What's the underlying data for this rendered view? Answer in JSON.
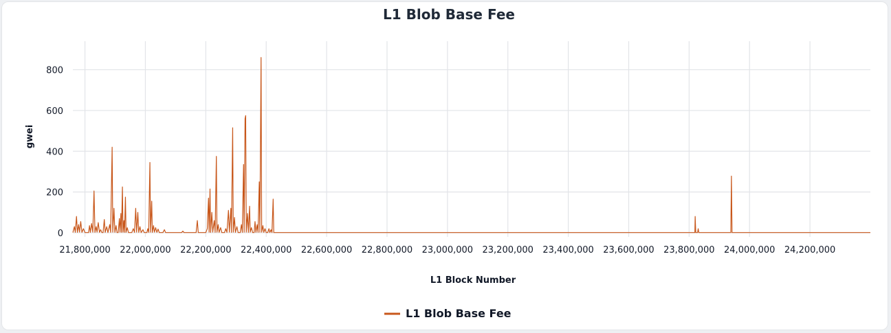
{
  "chart_data": {
    "type": "line",
    "title": "L1 Blob Base Fee",
    "xlabel": "L1 Block Number",
    "ylabel": "gwei",
    "xlim": [
      21760000,
      24400000
    ],
    "ylim": [
      0,
      940
    ],
    "x_ticks": [
      21800000,
      22000000,
      22200000,
      22400000,
      22600000,
      22800000,
      23000000,
      23200000,
      23400000,
      23600000,
      23800000,
      24000000,
      24200000
    ],
    "x_tick_labels": [
      "21,800,000",
      "22,000,000",
      "22,200,000",
      "22,400,000",
      "22,600,000",
      "22,800,000",
      "23,000,000",
      "23,200,000",
      "23,400,000",
      "23,600,000",
      "23,800,000",
      "24,000,000",
      "24,200,000"
    ],
    "y_ticks": [
      0,
      200,
      400,
      600,
      800
    ],
    "y_tick_labels": [
      "0",
      "200",
      "400",
      "600",
      "800"
    ],
    "grid": true,
    "legend_position": "bottom-center",
    "series": [
      {
        "name": "L1 Blob Base Fee",
        "color": "#c8571b",
        "points": [
          [
            21760000,
            1
          ],
          [
            21765000,
            30
          ],
          [
            21768000,
            2
          ],
          [
            21772000,
            80
          ],
          [
            21775000,
            2
          ],
          [
            21779000,
            40
          ],
          [
            21782000,
            3
          ],
          [
            21786000,
            55
          ],
          [
            21790000,
            2
          ],
          [
            21795000,
            20
          ],
          [
            21800000,
            1
          ],
          [
            21812000,
            1
          ],
          [
            21815000,
            35
          ],
          [
            21818000,
            2
          ],
          [
            21822000,
            45
          ],
          [
            21826000,
            3
          ],
          [
            21830000,
            205
          ],
          [
            21833000,
            2
          ],
          [
            21837000,
            30
          ],
          [
            21840000,
            3
          ],
          [
            21844000,
            50
          ],
          [
            21848000,
            2
          ],
          [
            21852000,
            15
          ],
          [
            21856000,
            1
          ],
          [
            21860000,
            1
          ],
          [
            21864000,
            65
          ],
          [
            21867000,
            2
          ],
          [
            21872000,
            30
          ],
          [
            21876000,
            1
          ],
          [
            21882000,
            40
          ],
          [
            21885000,
            2
          ],
          [
            21890000,
            420
          ],
          [
            21892000,
            3
          ],
          [
            21896000,
            120
          ],
          [
            21899000,
            2
          ],
          [
            21903000,
            35
          ],
          [
            21906000,
            1
          ],
          [
            21910000,
            1
          ],
          [
            21914000,
            70
          ],
          [
            21916000,
            3
          ],
          [
            21919000,
            95
          ],
          [
            21921000,
            2
          ],
          [
            21924000,
            225
          ],
          [
            21926000,
            3
          ],
          [
            21929000,
            60
          ],
          [
            21931000,
            2
          ],
          [
            21934000,
            175
          ],
          [
            21936000,
            2
          ],
          [
            21940000,
            25
          ],
          [
            21944000,
            1
          ],
          [
            21955000,
            1
          ],
          [
            21960000,
            20
          ],
          [
            21964000,
            2
          ],
          [
            21968000,
            120
          ],
          [
            21971000,
            3
          ],
          [
            21975000,
            100
          ],
          [
            21978000,
            2
          ],
          [
            21982000,
            30
          ],
          [
            21986000,
            1
          ],
          [
            21992000,
            15
          ],
          [
            21996000,
            1
          ],
          [
            22005000,
            1
          ],
          [
            22008000,
            20
          ],
          [
            22011000,
            2
          ],
          [
            22015000,
            345
          ],
          [
            22017000,
            3
          ],
          [
            22021000,
            155
          ],
          [
            22023000,
            2
          ],
          [
            22027000,
            35
          ],
          [
            22030000,
            3
          ],
          [
            22034000,
            25
          ],
          [
            22038000,
            2
          ],
          [
            22042000,
            18
          ],
          [
            22046000,
            1
          ],
          [
            22058000,
            1
          ],
          [
            22063000,
            15
          ],
          [
            22067000,
            1
          ],
          [
            22120000,
            1
          ],
          [
            22124000,
            8
          ],
          [
            22128000,
            1
          ],
          [
            22168000,
            1
          ],
          [
            22172000,
            60
          ],
          [
            22175000,
            1
          ],
          [
            22200000,
            1
          ],
          [
            22205000,
            20
          ],
          [
            22209000,
            170
          ],
          [
            22211000,
            3
          ],
          [
            22214000,
            215
          ],
          [
            22216000,
            2
          ],
          [
            22220000,
            100
          ],
          [
            22223000,
            3
          ],
          [
            22228000,
            60
          ],
          [
            22231000,
            2
          ],
          [
            22235000,
            375
          ],
          [
            22237000,
            3
          ],
          [
            22241000,
            40
          ],
          [
            22244000,
            2
          ],
          [
            22249000,
            25
          ],
          [
            22253000,
            1
          ],
          [
            22262000,
            1
          ],
          [
            22266000,
            20
          ],
          [
            22270000,
            2
          ],
          [
            22275000,
            110
          ],
          [
            22278000,
            3
          ],
          [
            22283000,
            120
          ],
          [
            22285000,
            2
          ],
          [
            22289000,
            515
          ],
          [
            22291000,
            3
          ],
          [
            22295000,
            75
          ],
          [
            22298000,
            2
          ],
          [
            22303000,
            30
          ],
          [
            22307000,
            1
          ],
          [
            22314000,
            1
          ],
          [
            22318000,
            40
          ],
          [
            22321000,
            2
          ],
          [
            22325000,
            335
          ],
          [
            22327000,
            3
          ],
          [
            22330000,
            560
          ],
          [
            22332000,
            575
          ],
          [
            22334000,
            3
          ],
          [
            22338000,
            95
          ],
          [
            22341000,
            2
          ],
          [
            22345000,
            130
          ],
          [
            22347000,
            3
          ],
          [
            22351000,
            25
          ],
          [
            22355000,
            1
          ],
          [
            22360000,
            1
          ],
          [
            22363000,
            55
          ],
          [
            22366000,
            2
          ],
          [
            22370000,
            40
          ],
          [
            22373000,
            2
          ],
          [
            22377000,
            250
          ],
          [
            22379000,
            3
          ],
          [
            22383000,
            860
          ],
          [
            22385000,
            3
          ],
          [
            22389000,
            35
          ],
          [
            22392000,
            2
          ],
          [
            22396000,
            20
          ],
          [
            22400000,
            1
          ],
          [
            22405000,
            1
          ],
          [
            22409000,
            20
          ],
          [
            22412000,
            1
          ],
          [
            22416000,
            15
          ],
          [
            22419000,
            1
          ],
          [
            22423000,
            165
          ],
          [
            22425000,
            1
          ],
          [
            23800000,
            1
          ],
          [
            23819000,
            1
          ],
          [
            23820000,
            80
          ],
          [
            23822000,
            1
          ],
          [
            23828000,
            1
          ],
          [
            23830000,
            20
          ],
          [
            23832000,
            1
          ],
          [
            23930000,
            1
          ],
          [
            23938000,
            1
          ],
          [
            23940000,
            278
          ],
          [
            23942000,
            1
          ],
          [
            24400000,
            1
          ]
        ]
      }
    ]
  }
}
